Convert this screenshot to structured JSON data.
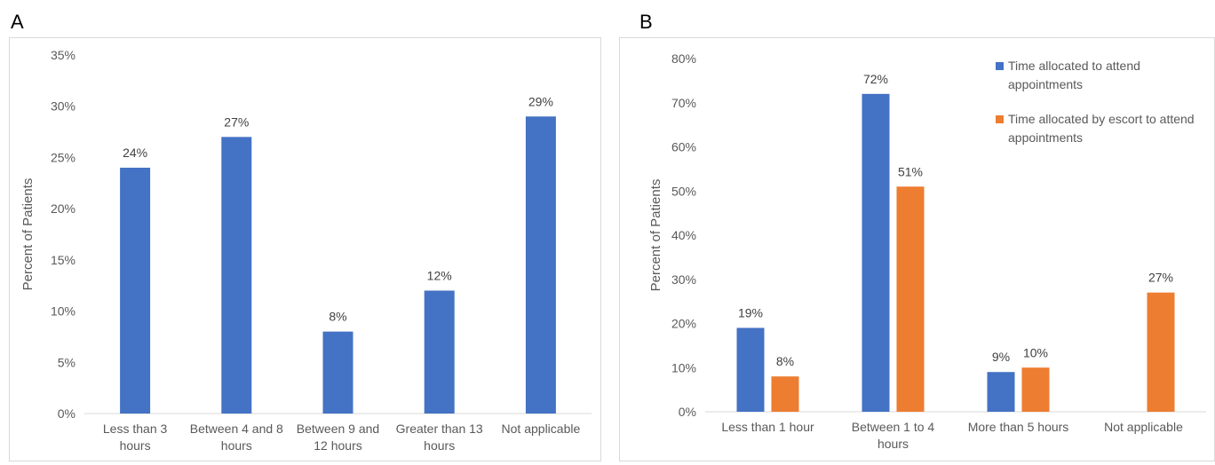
{
  "panels": {
    "a": {
      "letter": "A"
    },
    "b": {
      "letter": "B"
    }
  },
  "chart_data": [
    {
      "type": "bar",
      "categories": [
        [
          "Less than 3",
          "hours"
        ],
        [
          "Between 4 and 8",
          "hours"
        ],
        [
          "Between 9 and",
          "12 hours"
        ],
        [
          "Greater than 13",
          "hours"
        ],
        [
          "Not applicable"
        ]
      ],
      "series": [
        {
          "values": [
            24,
            27,
            8,
            12,
            29
          ],
          "labels": [
            "24%",
            "27%",
            "8%",
            "12%",
            "29%"
          ],
          "color": "#4472c4"
        }
      ],
      "ylabel": "Percent of Patients",
      "ylim": [
        0,
        35
      ],
      "yticks": [
        "0%",
        "5%",
        "10%",
        "15%",
        "20%",
        "25%",
        "30%",
        "35%"
      ],
      "grid": false,
      "legend": "none"
    },
    {
      "type": "bar",
      "categories": [
        [
          "Less than 1 hour"
        ],
        [
          "Between 1 to 4",
          "hours"
        ],
        [
          "More than 5 hours"
        ],
        [
          "Not applicable"
        ]
      ],
      "series": [
        {
          "name": "Time allocated to attend appointments",
          "legend_lines": [
            "Time allocated to attend",
            "appointments"
          ],
          "values": [
            19,
            72,
            9,
            null
          ],
          "labels": [
            "19%",
            "72%",
            "9%",
            ""
          ],
          "color": "#4472c4"
        },
        {
          "name": "Time allocated by escort to attend appointments",
          "legend_lines": [
            "Time allocated by escort to attend",
            "appointments"
          ],
          "values": [
            8,
            51,
            10,
            27
          ],
          "labels": [
            "8%",
            "51%",
            "10%",
            "27%"
          ],
          "color": "#ed7d31"
        }
      ],
      "ylabel": "Percent of Patients",
      "ylim": [
        0,
        80
      ],
      "yticks": [
        "0%",
        "10%",
        "20%",
        "30%",
        "40%",
        "50%",
        "60%",
        "70%",
        "80%"
      ],
      "grid": false,
      "legend": "top-right"
    }
  ]
}
